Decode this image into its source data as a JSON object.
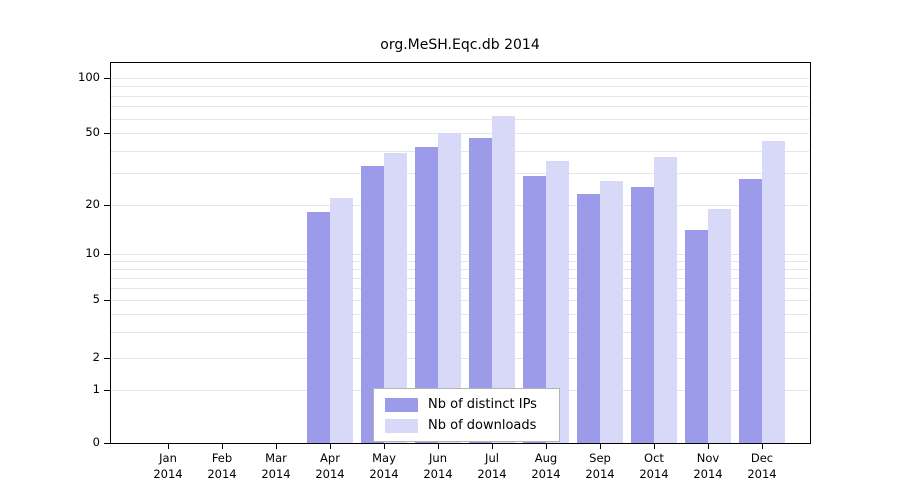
{
  "chart_data": {
    "type": "bar",
    "title": "org.MeSH.Eqc.db 2014",
    "xlabel": "",
    "ylabel": "",
    "y_scale": "log",
    "ylim": [
      0,
      110
    ],
    "grid": "on",
    "legend_position": "lower center",
    "categories": [
      "Jan",
      "Feb",
      "Mar",
      "Apr",
      "May",
      "Jun",
      "Jul",
      "Aug",
      "Sep",
      "Oct",
      "Nov",
      "Dec"
    ],
    "year_label": "2014",
    "series": [
      {
        "name": "Nb of distinct IPs",
        "color": "#9b9bea",
        "values": [
          0,
          0,
          0,
          18,
          33,
          42,
          47,
          29,
          23,
          25,
          14,
          28
        ]
      },
      {
        "name": "Nb of downloads",
        "color": "#d8d8f8",
        "values": [
          0,
          0,
          0,
          22,
          39,
          50,
          62,
          35,
          27,
          37,
          19,
          45
        ]
      }
    ],
    "y_ticks": [
      0,
      1,
      2,
      5,
      10,
      20,
      50,
      100
    ],
    "grid_values": [
      1,
      2,
      3,
      4,
      5,
      6,
      7,
      8,
      9,
      10,
      20,
      30,
      40,
      50,
      60,
      70,
      80,
      90,
      100
    ]
  }
}
